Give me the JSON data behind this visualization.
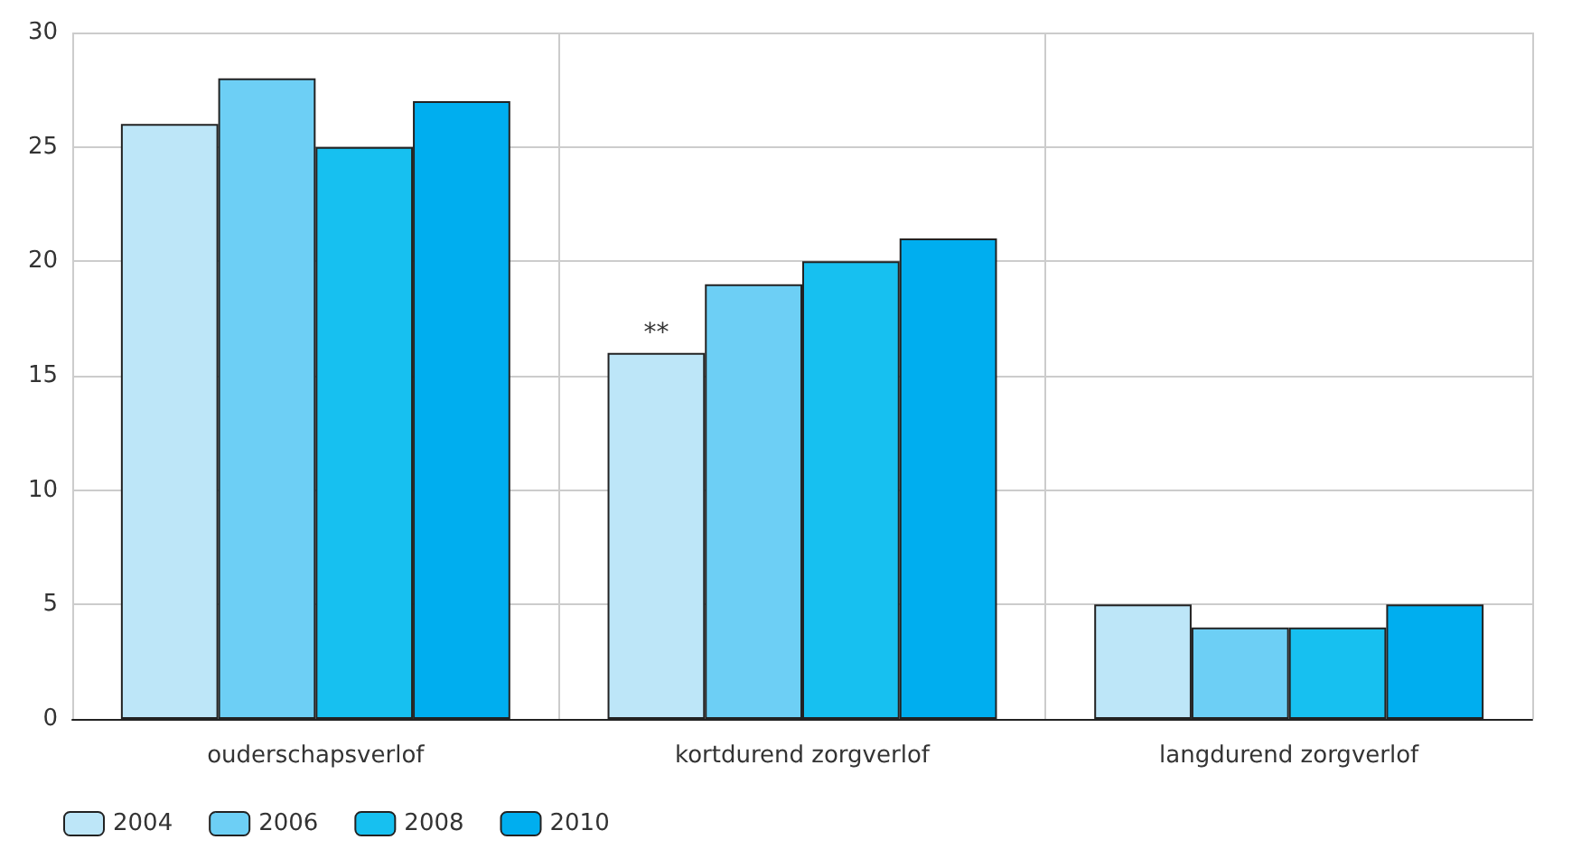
{
  "chart_data": {
    "type": "bar",
    "categories": [
      "ouderschapsverlof",
      "kortdurend zorgverlof",
      "langdurend zorgverlof"
    ],
    "series": [
      {
        "name": "2004",
        "color": "#bde6f8",
        "values": [
          26,
          16,
          5
        ]
      },
      {
        "name": "2006",
        "color": "#6dcff5",
        "values": [
          28,
          19,
          4
        ]
      },
      {
        "name": "2008",
        "color": "#17c0f0",
        "values": [
          25,
          20,
          4
        ]
      },
      {
        "name": "2010",
        "color": "#00aeef",
        "values": [
          27,
          21,
          5
        ]
      }
    ],
    "ylim": [
      0,
      30
    ],
    "yticks": [
      0,
      5,
      10,
      15,
      20,
      25,
      30
    ],
    "grid": true,
    "legend": "bottom left",
    "annotations": [
      "**"
    ]
  }
}
